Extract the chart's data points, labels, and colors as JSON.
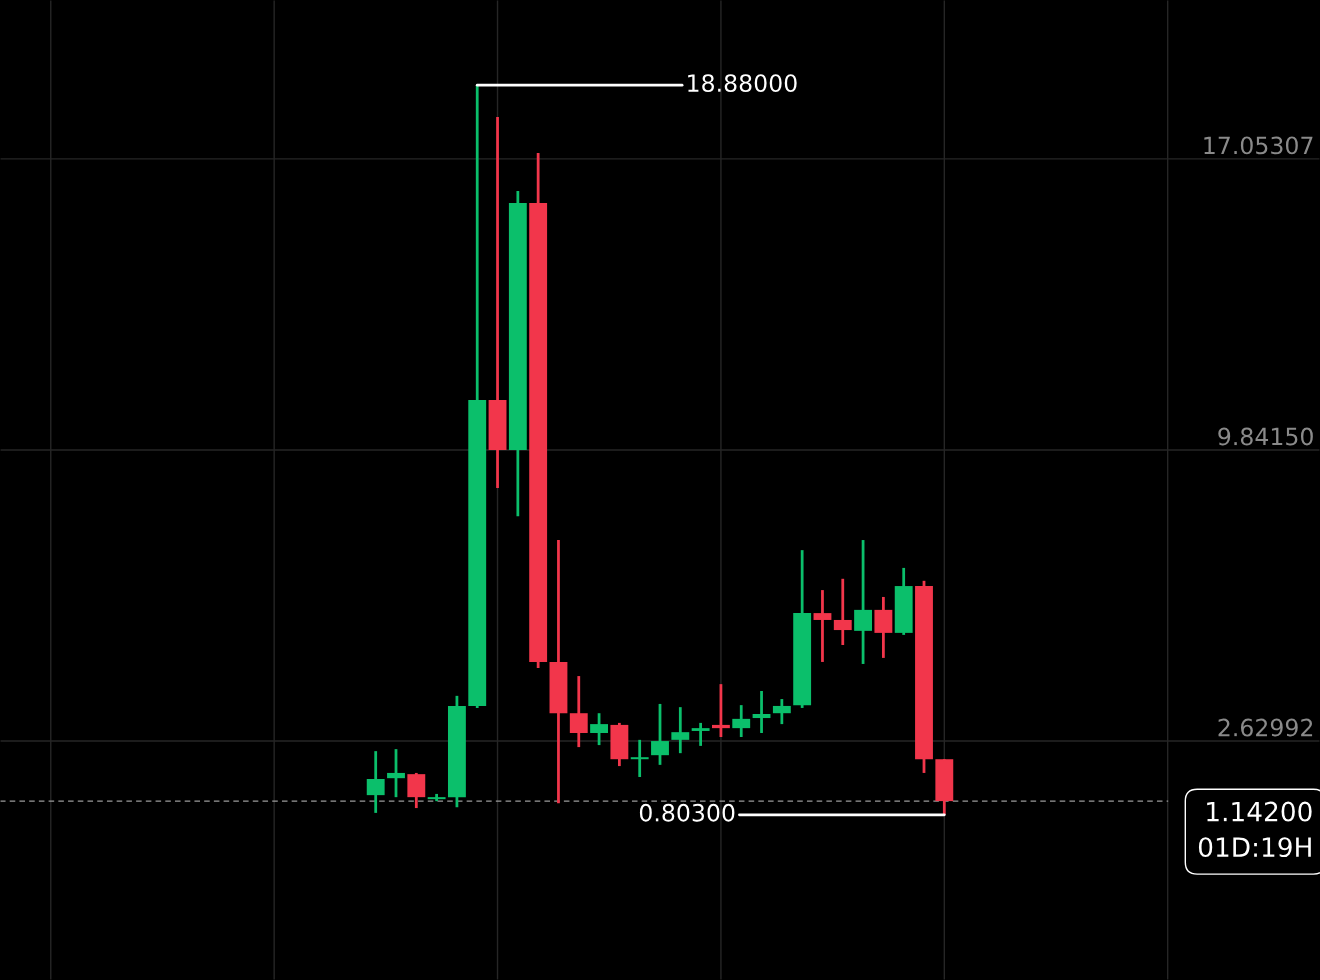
{
  "chart_data": {
    "type": "candlestick",
    "categories": [
      null,
      null,
      null,
      null,
      null,
      null,
      null,
      null,
      null,
      null,
      null,
      null,
      null,
      null,
      null,
      null,
      null,
      null,
      null,
      null,
      null,
      null,
      null,
      null,
      null,
      null,
      null,
      null,
      null,
      null,
      null,
      null,
      null,
      null,
      null,
      null,
      null,
      null,
      null,
      null,
      null,
      null,
      null,
      null,
      null,
      null,
      null,
      null,
      null,
      null,
      null,
      null,
      null,
      null,
      null,
      null,
      null,
      null,
      null,
      null,
      null,
      null,
      null,
      null,
      null
    ],
    "ohlc": [
      null,
      null,
      null,
      null,
      null,
      null,
      null,
      null,
      null,
      null,
      null,
      null,
      null,
      null,
      null,
      null,
      null,
      null,
      [
        1.29,
        2.38,
        0.85,
        1.69
      ],
      [
        1.71,
        2.43,
        1.24,
        1.84
      ],
      [
        1.81,
        1.84,
        0.97,
        1.24
      ],
      [
        1.19,
        1.32,
        1.14,
        1.24
      ],
      [
        1.24,
        3.75,
        0.99,
        3.5
      ],
      [
        3.5,
        18.88,
        3.45,
        11.08
      ],
      [
        11.08,
        18.09,
        8.9,
        9.84
      ],
      [
        9.84,
        16.26,
        8.2,
        15.96
      ],
      [
        15.96,
        17.2,
        4.44,
        4.59
      ],
      [
        4.59,
        7.61,
        1.09,
        3.32
      ],
      [
        3.32,
        4.24,
        2.48,
        2.83
      ],
      [
        2.83,
        3.32,
        2.53,
        3.05
      ],
      [
        3.03,
        3.08,
        2.01,
        2.18
      ],
      [
        2.18,
        2.66,
        1.74,
        2.23
      ],
      [
        2.28,
        3.55,
        2.04,
        2.63
      ],
      [
        2.66,
        3.47,
        2.33,
        2.85
      ],
      [
        2.88,
        3.08,
        2.51,
        2.95
      ],
      [
        3.03,
        4.04,
        2.73,
        2.95
      ],
      [
        2.95,
        3.52,
        2.73,
        3.18
      ],
      [
        3.2,
        3.87,
        2.83,
        3.3
      ],
      [
        3.32,
        3.67,
        3.05,
        3.5
      ],
      [
        3.52,
        7.36,
        3.45,
        5.8
      ],
      [
        5.8,
        6.37,
        4.59,
        5.63
      ],
      [
        5.63,
        6.65,
        5.01,
        5.38
      ],
      [
        5.36,
        7.61,
        4.54,
        5.88
      ],
      [
        5.88,
        6.2,
        4.69,
        5.31
      ],
      [
        5.31,
        6.92,
        5.26,
        6.47
      ],
      [
        6.47,
        6.6,
        1.84,
        2.18
      ],
      [
        2.18,
        2.18,
        0.803,
        1.142
      ],
      null,
      null,
      null,
      null,
      null,
      null,
      null,
      null,
      null,
      null,
      null,
      null,
      null,
      null,
      null,
      null,
      null,
      null
    ],
    "colors": [
      null,
      null,
      null,
      null,
      null,
      null,
      null,
      null,
      null,
      null,
      null,
      null,
      null,
      null,
      null,
      null,
      null,
      null,
      "#0bbf6b",
      "#0bbf6b",
      "#f2364b",
      "#0bbf6b",
      "#0bbf6b",
      "#0bbf6b",
      "#f2364b",
      "#0bbf6b",
      "#f2364b",
      "#f2364b",
      "#f2364b",
      "#0bbf6b",
      "#f2364b",
      "#0bbf6b",
      "#0bbf6b",
      "#0bbf6b",
      "#0bbf6b",
      "#f2364b",
      "#0bbf6b",
      "#0bbf6b",
      "#0bbf6b",
      "#0bbf6b",
      "#f2364b",
      "#f2364b",
      "#0bbf6b",
      "#f2364b",
      "#0bbf6b",
      "#f2364b",
      "#f2364b",
      null,
      null,
      null,
      null,
      null,
      null,
      null,
      null,
      null,
      null,
      null,
      null,
      null,
      null,
      null,
      null,
      null,
      null
    ],
    "ylim": [
      -3.29,
      20.99
    ],
    "yticks": [
      {
        "value": 17.05307,
        "label": "17.05307"
      },
      {
        "value": 9.8415,
        "label": "9.84150"
      },
      {
        "value": 2.62992,
        "label": "2.62992"
      }
    ],
    "tick_labels": "y",
    "grid": true,
    "annotations": [
      "18.88000",
      "0.80300"
    ],
    "ref_lines": [
      {
        "axis": "y",
        "value": 1.142,
        "label": "1.14200\n01D:19H",
        "color": "#9a9a9a",
        "line_style": "dashed"
      }
    ]
  }
}
